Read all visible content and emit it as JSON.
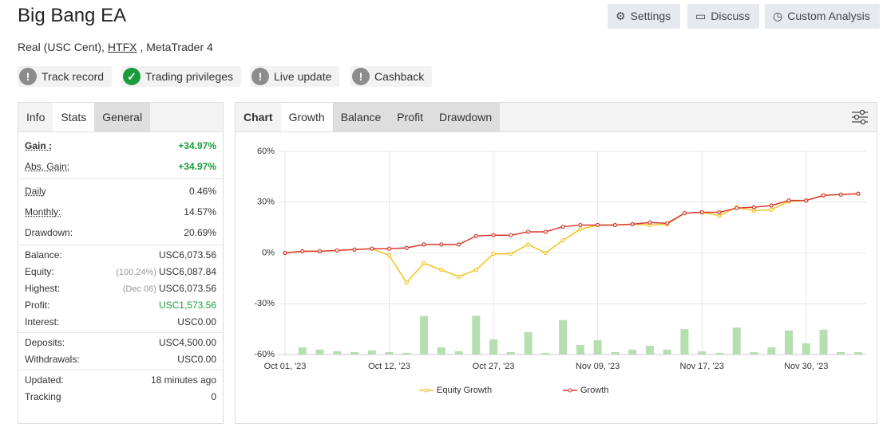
{
  "header": {
    "title": "Big Bang EA",
    "account": "Real (USC Cent),",
    "broker": "HTFX",
    "platform": ", MetaTrader 4",
    "buttons": [
      "Settings",
      "Discuss",
      "Custom Analysis"
    ]
  },
  "badges": [
    {
      "text": "Track record",
      "color": "#8c8c8c"
    },
    {
      "text": "Trading privileges",
      "color": "#1a9c3c"
    },
    {
      "text": "Live update",
      "color": "#8c8c8c"
    },
    {
      "text": "Cashback",
      "color": "#8c8c8c"
    }
  ],
  "left_tabs": [
    "Info",
    "Stats",
    "General"
  ],
  "stats": [
    [
      {
        "label": "Gain :",
        "value": "+34.97%",
        "color": "#1a9c3c"
      },
      {
        "label": "Abs. Gain:",
        "value": "+34.97%",
        "color": "#1a9c3c"
      }
    ],
    [
      {
        "label": "Daily",
        "value": "0.46%"
      },
      {
        "label": "Monthly:",
        "value": "14.57%"
      },
      {
        "label": "Drawdown:",
        "value": "20.69%"
      }
    ],
    [
      {
        "label": "Balance:",
        "value": "USC6,073.56"
      },
      {
        "label": "Equity:",
        "note": "(100.24%)",
        "value": "USC6,087.84"
      },
      {
        "label": "Highest:",
        "note": "(Dec 06)",
        "value": "USC6,073.56"
      },
      {
        "label": "Profit:",
        "value": "USC1,573.56",
        "color": "#1a9c3c"
      },
      {
        "label": "Interest:",
        "value": "USC0.00"
      }
    ],
    [
      {
        "label": "Deposits:",
        "value": "USC4,500.00"
      },
      {
        "label": "Withdrawals:",
        "value": "USC0.00"
      }
    ],
    [
      {
        "label": "Updated:",
        "value": "18 minutes ago"
      },
      {
        "label": "Tracking",
        "value": "0"
      }
    ]
  ],
  "chart_tabs": [
    "Chart",
    "Growth",
    "Balance",
    "Profit",
    "Drawdown"
  ],
  "chart_data": {
    "type": "line",
    "categories": [
      "Oct 01, '23",
      null,
      null,
      null,
      null,
      null,
      "Oct 12, '23",
      null,
      null,
      null,
      null,
      null,
      "Oct 27, '23",
      null,
      null,
      null,
      null,
      null,
      "Nov 09, '23",
      null,
      null,
      null,
      null,
      null,
      "Nov 17, '23",
      null,
      null,
      null,
      null,
      null,
      "Nov 30, '23",
      null,
      null,
      null
    ],
    "ylim": [
      -60,
      60
    ],
    "yticks": [
      {
        "value": -60,
        "label": "-60%"
      },
      {
        "value": -30,
        "label": "-30%"
      },
      {
        "value": 0,
        "label": "0%"
      },
      {
        "value": 30,
        "label": "30%"
      },
      {
        "value": 60,
        "label": "60%"
      }
    ],
    "y2lim": [
      0,
      100
    ],
    "grid": true,
    "series": [
      {
        "name": "Equity Growth",
        "color": "#f2c21b",
        "values": [
          0,
          1,
          1,
          1.5,
          2,
          2.5,
          -1.5,
          -17.5,
          -6,
          -10,
          -14,
          -10,
          -0.5,
          -0.5,
          5,
          0,
          7.5,
          14,
          16.5,
          16.5,
          17,
          16.5,
          17,
          23.5,
          24,
          22,
          27,
          25,
          25.5,
          30.5,
          31,
          34,
          34.5,
          35
        ]
      },
      {
        "name": "Growth",
        "color": "#d9372b",
        "values": [
          0,
          1,
          1,
          1.5,
          2,
          2.5,
          2.5,
          3,
          5,
          5,
          5,
          10,
          10.5,
          10.5,
          12.5,
          12.5,
          15.5,
          16.5,
          16.5,
          16.5,
          17,
          18,
          17.5,
          23.5,
          24,
          24,
          26.5,
          27,
          28,
          31,
          31,
          34,
          34.5,
          35
        ]
      },
      {
        "type": "bar",
        "axis": "y2",
        "color": "#b6dfb0",
        "values": [
          null,
          3.5,
          2.4,
          1.6,
          1.2,
          2,
          1.2,
          0.8,
          19,
          3.5,
          1.6,
          19,
          7.5,
          1.2,
          11,
          0.8,
          17,
          4.7,
          7,
          1.2,
          2.4,
          4.3,
          2.4,
          12.5,
          1.6,
          0.8,
          13.3,
          1.2,
          3.5,
          11.8,
          5.5,
          12.2,
          1.2,
          1.2
        ]
      }
    ]
  }
}
